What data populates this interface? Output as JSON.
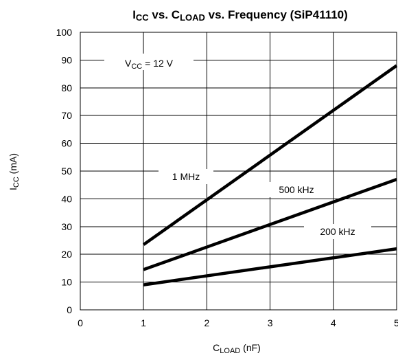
{
  "chart_data": {
    "type": "line",
    "title_parts": [
      {
        "t": "I",
        "s": "normal"
      },
      {
        "t": "CC",
        "s": "sub"
      },
      {
        "t": " vs. C",
        "s": "normal"
      },
      {
        "t": "LOAD",
        "s": "sub"
      },
      {
        "t": " vs. Frequency  (SiP41110)",
        "s": "normal"
      }
    ],
    "xlabel_parts": [
      {
        "t": "C",
        "s": "normal"
      },
      {
        "t": "LOAD",
        "s": "sub"
      },
      {
        "t": " (nF)",
        "s": "normal"
      }
    ],
    "ylabel_parts": [
      {
        "t": "I",
        "s": "normal"
      },
      {
        "t": "CC",
        "s": "sub"
      },
      {
        "t": " (mA)",
        "s": "normal"
      }
    ],
    "annotation_parts": [
      {
        "t": "V",
        "s": "normal"
      },
      {
        "t": "CC",
        "s": "sub"
      },
      {
        "t": " = 12 V",
        "s": "normal"
      }
    ],
    "xlim": [
      0,
      5
    ],
    "ylim": [
      0,
      100
    ],
    "xticks": [
      0,
      1,
      2,
      3,
      4,
      5
    ],
    "yticks": [
      0,
      10,
      20,
      30,
      40,
      50,
      60,
      70,
      80,
      90,
      100
    ],
    "grid": true,
    "series": [
      {
        "name": "1 MHz",
        "x": [
          1,
          5
        ],
        "y": [
          23.5,
          88
        ]
      },
      {
        "name": "500 kHz",
        "x": [
          1,
          5
        ],
        "y": [
          14.5,
          47
        ]
      },
      {
        "name": "200 kHz",
        "x": [
          1,
          5
        ],
        "y": [
          9,
          22
        ]
      }
    ]
  }
}
